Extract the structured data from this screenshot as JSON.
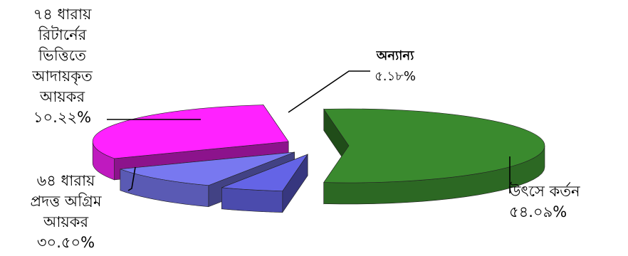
{
  "chart_data": {
    "type": "pie",
    "style": "3d-exploded",
    "title": "",
    "slices": [
      {
        "label": "উৎসে কর্তন",
        "value": 54.09,
        "value_label": "৫৪.০৯%",
        "color": "#3a8a2e"
      },
      {
        "label": "৬৪ ধারায়\nপ্রদত্ত অগ্রিম\nআয়কর",
        "value": 30.5,
        "value_label": "৩০.৫০%",
        "color": "#ff22ff"
      },
      {
        "label": "৭৪ ধারায়\nরিটার্নের\nভিত্তিতে\nআদায়কৃত\nআয়কর",
        "value": 10.22,
        "value_label": "১০.২২%",
        "color": "#7878f0"
      },
      {
        "label": "অন্যান্য",
        "value": 5.18,
        "value_label": "৫.১৮%",
        "color": "#6464e6"
      }
    ]
  }
}
